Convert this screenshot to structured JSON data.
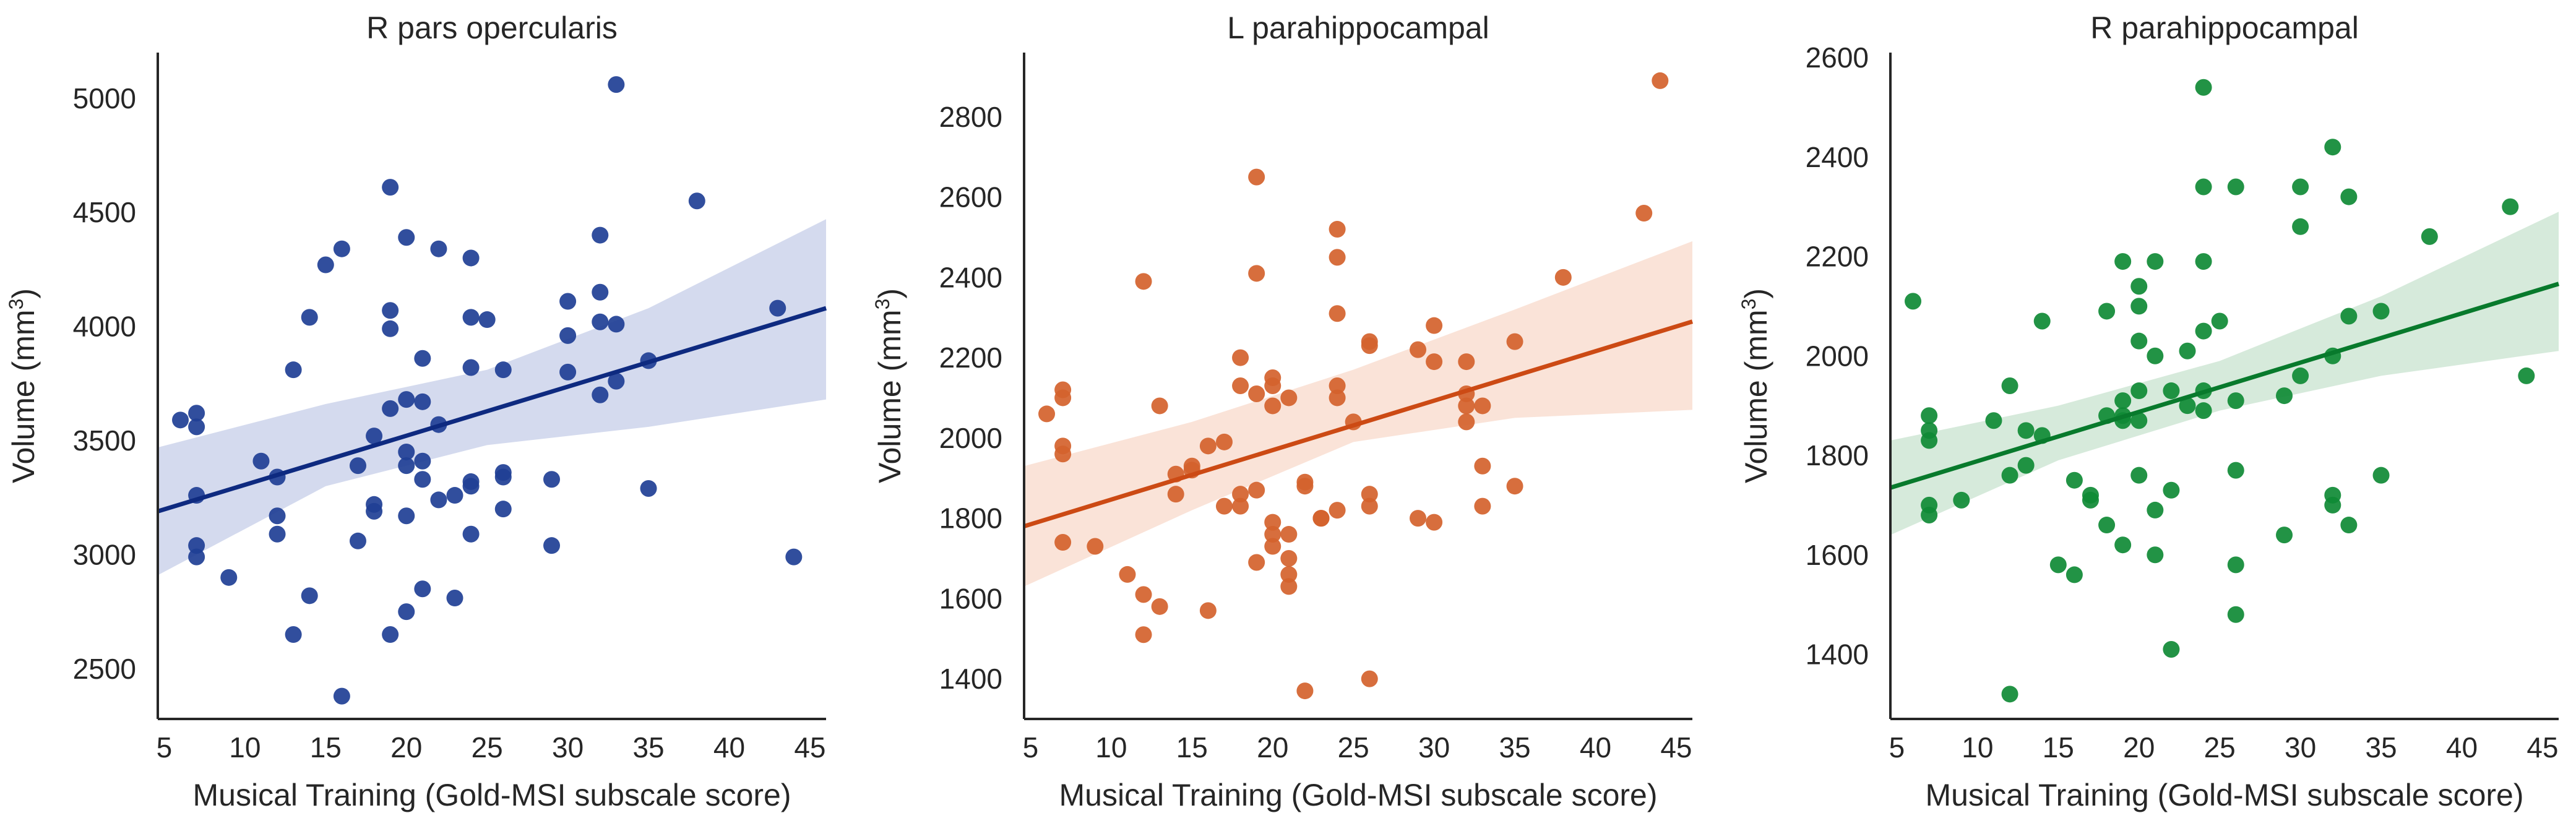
{
  "chart_data": [
    {
      "type": "scatter",
      "title": "R pars opercularis",
      "xlabel": "Musical Training (Gold-MSI subscale score)",
      "ylabel": "Volume (mm",
      "ylabel_superscript": "3",
      "ylabel_close": ")",
      "xlim": [
        4.6,
        46
      ],
      "ylim": [
        2280,
        5200
      ],
      "xticks": [
        "5",
        "10",
        "15",
        "20",
        "25",
        "30",
        "35",
        "40",
        "45"
      ],
      "yticks": [
        "2500",
        "3000",
        "3500",
        "4000",
        "4500",
        "5000"
      ],
      "color": "#1f3f95",
      "line_color": "#0e2a80",
      "band_color": "#c6cde8",
      "fit": {
        "x": [
          4.6,
          46
        ],
        "y": [
          3190,
          4080
        ]
      },
      "band": {
        "x": [
          4.6,
          15,
          25,
          35,
          46
        ],
        "lower": [
          2910,
          3300,
          3480,
          3560,
          3680
        ],
        "upper": [
          3470,
          3660,
          3810,
          4080,
          4470
        ]
      },
      "points": [
        [
          6,
          3590
        ],
        [
          7,
          3620
        ],
        [
          7,
          3560
        ],
        [
          7,
          3260
        ],
        [
          7,
          3040
        ],
        [
          7,
          2990
        ],
        [
          9,
          2900
        ],
        [
          11,
          3410
        ],
        [
          12,
          3340
        ],
        [
          12,
          3170
        ],
        [
          12,
          3090
        ],
        [
          13,
          3810
        ],
        [
          13,
          2650
        ],
        [
          14,
          4040
        ],
        [
          14,
          2820
        ],
        [
          15,
          4270
        ],
        [
          16,
          4340
        ],
        [
          16,
          2380
        ],
        [
          17,
          3390
        ],
        [
          17,
          3060
        ],
        [
          18,
          3520
        ],
        [
          18,
          3220
        ],
        [
          18,
          3190
        ],
        [
          19,
          4610
        ],
        [
          19,
          4070
        ],
        [
          19,
          3990
        ],
        [
          19,
          3640
        ],
        [
          19,
          2650
        ],
        [
          20,
          4390
        ],
        [
          20,
          3680
        ],
        [
          20,
          3450
        ],
        [
          20,
          3390
        ],
        [
          20,
          3170
        ],
        [
          20,
          2750
        ],
        [
          21,
          3860
        ],
        [
          21,
          3670
        ],
        [
          21,
          3410
        ],
        [
          21,
          3330
        ],
        [
          21,
          2850
        ],
        [
          22,
          4340
        ],
        [
          22,
          3570
        ],
        [
          22,
          3240
        ],
        [
          23,
          3260
        ],
        [
          23,
          2810
        ],
        [
          24,
          4300
        ],
        [
          24,
          4040
        ],
        [
          24,
          3820
        ],
        [
          24,
          3320
        ],
        [
          24,
          3300
        ],
        [
          24,
          3090
        ],
        [
          25,
          4030
        ],
        [
          26,
          3810
        ],
        [
          26,
          3360
        ],
        [
          26,
          3340
        ],
        [
          26,
          3200
        ],
        [
          29,
          3330
        ],
        [
          29,
          3040
        ],
        [
          30,
          4110
        ],
        [
          30,
          3960
        ],
        [
          30,
          3800
        ],
        [
          32,
          4400
        ],
        [
          32,
          4150
        ],
        [
          32,
          4020
        ],
        [
          32,
          3700
        ],
        [
          33,
          5060
        ],
        [
          33,
          4010
        ],
        [
          33,
          3760
        ],
        [
          35,
          3850
        ],
        [
          35,
          3290
        ],
        [
          38,
          4550
        ],
        [
          43,
          4080
        ],
        [
          44,
          2990
        ]
      ]
    },
    {
      "type": "scatter",
      "title": "L parahippocampal",
      "xlabel": "Musical Training (Gold-MSI subscale score)",
      "ylabel": "Volume (mm",
      "ylabel_superscript": "3",
      "ylabel_close": ")",
      "xlim": [
        4.6,
        46
      ],
      "ylim": [
        1300,
        2960
      ],
      "xticks": [
        "5",
        "10",
        "15",
        "20",
        "25",
        "30",
        "35",
        "40",
        "45"
      ],
      "yticks": [
        "1400",
        "1600",
        "1800",
        "2000",
        "2200",
        "2400",
        "2600",
        "2800"
      ],
      "color": "#d4622c",
      "line_color": "#cc4a14",
      "band_color": "#f8d9cb",
      "fit": {
        "x": [
          4.6,
          46
        ],
        "y": [
          1780,
          2290
        ]
      },
      "band": {
        "x": [
          4.6,
          15,
          25,
          35,
          46
        ],
        "lower": [
          1630,
          1820,
          1990,
          2050,
          2070
        ],
        "upper": [
          1930,
          2040,
          2170,
          2320,
          2490
        ]
      },
      "points": [
        [
          6,
          2060
        ],
        [
          7,
          2120
        ],
        [
          7,
          2100
        ],
        [
          7,
          1980
        ],
        [
          7,
          1960
        ],
        [
          7,
          1740
        ],
        [
          9,
          1730
        ],
        [
          11,
          1660
        ],
        [
          12,
          2390
        ],
        [
          12,
          1610
        ],
        [
          12,
          1510
        ],
        [
          13,
          2080
        ],
        [
          13,
          1580
        ],
        [
          14,
          1910
        ],
        [
          14,
          1860
        ],
        [
          15,
          1920
        ],
        [
          15,
          1930
        ],
        [
          16,
          1980
        ],
        [
          16,
          1570
        ],
        [
          17,
          1990
        ],
        [
          17,
          1830
        ],
        [
          18,
          2200
        ],
        [
          18,
          2130
        ],
        [
          18,
          1830
        ],
        [
          18,
          1860
        ],
        [
          19,
          2650
        ],
        [
          19,
          2410
        ],
        [
          19,
          2110
        ],
        [
          19,
          1870
        ],
        [
          19,
          1690
        ],
        [
          20,
          2150
        ],
        [
          20,
          2130
        ],
        [
          20,
          2080
        ],
        [
          20,
          1790
        ],
        [
          20,
          1760
        ],
        [
          20,
          1730
        ],
        [
          21,
          2100
        ],
        [
          21,
          1760
        ],
        [
          21,
          1700
        ],
        [
          21,
          1660
        ],
        [
          21,
          1630
        ],
        [
          22,
          1890
        ],
        [
          22,
          1880
        ],
        [
          22,
          1370
        ],
        [
          23,
          1800
        ],
        [
          23,
          1800
        ],
        [
          24,
          2520
        ],
        [
          24,
          2450
        ],
        [
          24,
          2310
        ],
        [
          24,
          2130
        ],
        [
          24,
          2100
        ],
        [
          24,
          1820
        ],
        [
          25,
          2040
        ],
        [
          26,
          2240
        ],
        [
          26,
          2230
        ],
        [
          26,
          1860
        ],
        [
          26,
          1830
        ],
        [
          26,
          1400
        ],
        [
          29,
          2220
        ],
        [
          29,
          1800
        ],
        [
          30,
          2280
        ],
        [
          30,
          2190
        ],
        [
          30,
          1790
        ],
        [
          32,
          2190
        ],
        [
          32,
          2110
        ],
        [
          32,
          2080
        ],
        [
          32,
          2040
        ],
        [
          33,
          2080
        ],
        [
          33,
          1930
        ],
        [
          33,
          1830
        ],
        [
          35,
          2240
        ],
        [
          35,
          1880
        ],
        [
          38,
          2400
        ],
        [
          43,
          2560
        ],
        [
          44,
          2890
        ]
      ]
    },
    {
      "type": "scatter",
      "title": "R parahippocampal",
      "xlabel": "Musical Training (Gold-MSI subscale score)",
      "ylabel": "Volume (mm",
      "ylabel_superscript": "3",
      "ylabel_close": ")",
      "xlim": [
        4.6,
        46
      ],
      "ylim": [
        1270,
        2610
      ],
      "xticks": [
        "5",
        "10",
        "15",
        "20",
        "25",
        "30",
        "35",
        "40",
        "45"
      ],
      "yticks": [
        "1400",
        "1600",
        "1800",
        "2000",
        "2200",
        "2400",
        "2600"
      ],
      "color": "#0f8a35",
      "line_color": "#087a2c",
      "band_color": "#c8e3cf",
      "fit": {
        "x": [
          4.6,
          46
        ],
        "y": [
          1735,
          2145
        ]
      },
      "band": {
        "x": [
          4.6,
          15,
          25,
          35,
          46
        ],
        "lower": [
          1640,
          1790,
          1890,
          1960,
          2010
        ],
        "upper": [
          1830,
          1900,
          1990,
          2120,
          2290
        ]
      },
      "points": [
        [
          6,
          2110
        ],
        [
          7,
          1880
        ],
        [
          7,
          1850
        ],
        [
          7,
          1830
        ],
        [
          7,
          1700
        ],
        [
          7,
          1680
        ],
        [
          9,
          1710
        ],
        [
          11,
          1870
        ],
        [
          12,
          1940
        ],
        [
          12,
          1760
        ],
        [
          12,
          1320
        ],
        [
          13,
          1850
        ],
        [
          13,
          1780
        ],
        [
          14,
          2070
        ],
        [
          14,
          1840
        ],
        [
          15,
          1580
        ],
        [
          16,
          1750
        ],
        [
          16,
          1560
        ],
        [
          17,
          1720
        ],
        [
          17,
          1710
        ],
        [
          18,
          2090
        ],
        [
          18,
          1880
        ],
        [
          18,
          1660
        ],
        [
          19,
          2190
        ],
        [
          19,
          1910
        ],
        [
          19,
          1880
        ],
        [
          19,
          1870
        ],
        [
          19,
          1620
        ],
        [
          20,
          2140
        ],
        [
          20,
          2100
        ],
        [
          20,
          2030
        ],
        [
          20,
          1930
        ],
        [
          20,
          1870
        ],
        [
          20,
          1760
        ],
        [
          21,
          2190
        ],
        [
          21,
          2000
        ],
        [
          21,
          1690
        ],
        [
          21,
          1600
        ],
        [
          22,
          1930
        ],
        [
          22,
          1730
        ],
        [
          22,
          1410
        ],
        [
          23,
          2010
        ],
        [
          23,
          1900
        ],
        [
          24,
          2540
        ],
        [
          24,
          2340
        ],
        [
          24,
          2190
        ],
        [
          24,
          2050
        ],
        [
          24,
          1930
        ],
        [
          24,
          1890
        ],
        [
          25,
          2070
        ],
        [
          26,
          2340
        ],
        [
          26,
          1910
        ],
        [
          26,
          1770
        ],
        [
          26,
          1580
        ],
        [
          26,
          1480
        ],
        [
          29,
          1920
        ],
        [
          29,
          1640
        ],
        [
          30,
          2340
        ],
        [
          30,
          2260
        ],
        [
          30,
          1960
        ],
        [
          32,
          2420
        ],
        [
          32,
          2000
        ],
        [
          32,
          1720
        ],
        [
          32,
          1700
        ],
        [
          33,
          2320
        ],
        [
          33,
          2080
        ],
        [
          33,
          1660
        ],
        [
          35,
          2090
        ],
        [
          35,
          1760
        ],
        [
          38,
          2240
        ],
        [
          43,
          2300
        ],
        [
          44,
          1960
        ]
      ]
    }
  ]
}
